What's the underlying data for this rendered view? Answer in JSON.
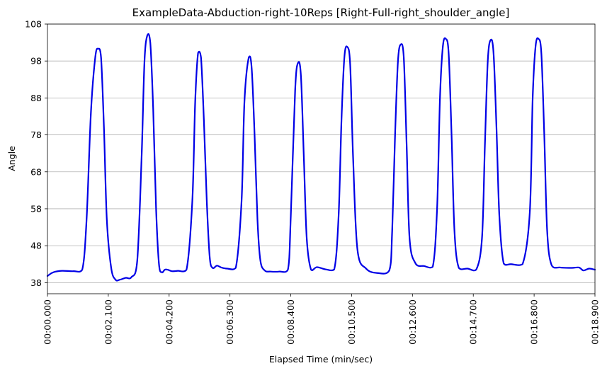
{
  "chart_data": {
    "type": "line",
    "title": "ExampleData-Abduction-right-10Reps [Right-Full-right_shoulder_angle]",
    "xlabel": "Elapsed Time (min/sec)",
    "ylabel": "Angle",
    "xlim": [
      0,
      18.9
    ],
    "ylim": [
      35,
      108
    ],
    "y_ticks": [
      38,
      48,
      58,
      68,
      78,
      88,
      98,
      108
    ],
    "y_tick_labels": [
      "38",
      "48",
      "58",
      "68",
      "78",
      "88",
      "98",
      "108"
    ],
    "x_ticks": [
      0,
      2.1,
      4.2,
      6.3,
      8.4,
      10.5,
      12.6,
      14.7,
      16.8,
      18.9
    ],
    "x_tick_labels": [
      "00:00.000",
      "00:02.100",
      "00:04.200",
      "00:06.300",
      "00:08.400",
      "00:10.500",
      "00:12.600",
      "00:14.700",
      "00:16.800",
      "00:18.900"
    ],
    "grid": "horizontal",
    "color": "#0000e6",
    "series": [
      {
        "name": "right_shoulder_angle",
        "x": [
          0,
          0.2,
          0.5,
          0.9,
          1.2,
          1.35,
          1.5,
          1.65,
          1.75,
          1.85,
          1.95,
          2.05,
          2.2,
          2.35,
          2.5,
          2.7,
          2.9,
          3.1,
          3.25,
          3.35,
          3.45,
          3.55,
          3.65,
          3.75,
          3.85,
          3.95,
          4.05,
          4.15,
          4.3,
          4.5,
          4.8,
          5.0,
          5.1,
          5.2,
          5.3,
          5.4,
          5.5,
          5.6,
          5.7,
          5.85,
          6.0,
          6.2,
          6.5,
          6.7,
          6.8,
          6.95,
          7.05,
          7.15,
          7.25,
          7.35,
          7.5,
          7.7,
          8.0,
          8.3,
          8.4,
          8.55,
          8.65,
          8.75,
          8.85,
          8.95,
          9.1,
          9.3,
          9.6,
          9.9,
          10.05,
          10.15,
          10.25,
          10.35,
          10.45,
          10.55,
          10.7,
          11.0,
          11.4,
          11.8,
          11.9,
          12.0,
          12.1,
          12.2,
          12.3,
          12.4,
          12.5,
          12.7,
          13.0,
          13.3,
          13.45,
          13.55,
          13.65,
          13.75,
          13.85,
          13.95,
          14.05,
          14.2,
          14.5,
          14.8,
          15.0,
          15.1,
          15.2,
          15.3,
          15.4,
          15.5,
          15.6,
          15.75,
          16.0,
          16.4,
          16.65,
          16.75,
          16.85,
          16.95,
          17.05,
          17.15,
          17.25,
          17.4,
          17.7,
          18.1,
          18.35,
          18.5,
          18.7,
          18.9
        ],
        "values": [
          39.8,
          40.8,
          41.2,
          41.1,
          41.5,
          55,
          84,
          99,
          101.3,
          99,
          80,
          55,
          42,
          38.8,
          38.8,
          39.3,
          39.5,
          44,
          72,
          98,
          105,
          103,
          85,
          58,
          43,
          40.8,
          41.5,
          41.5,
          41.1,
          41.2,
          41.5,
          60,
          87,
          100.2,
          99,
          82,
          60,
          45,
          42,
          42.6,
          42.1,
          41.8,
          42,
          60,
          87,
          99,
          96,
          78,
          55,
          44,
          41.3,
          41,
          41,
          41.5,
          56,
          90,
          97.5,
          94,
          72,
          50,
          41.5,
          42.2,
          41.6,
          41.6,
          56,
          82,
          99,
          101.8,
          97,
          72,
          47,
          41.8,
          40.6,
          41.3,
          52,
          78,
          98,
          102.5,
          99,
          75,
          50,
          43.3,
          42.5,
          42.3,
          58,
          88,
          102,
          104,
          100,
          78,
          52,
          42,
          41.8,
          41.5,
          50,
          75,
          98,
          103.7,
          100,
          80,
          56,
          43.2,
          43,
          43,
          57,
          88,
          102,
          104,
          100,
          78,
          52,
          42.8,
          42.1,
          42,
          42.1,
          41.3,
          41.8,
          41.5
        ]
      }
    ]
  }
}
